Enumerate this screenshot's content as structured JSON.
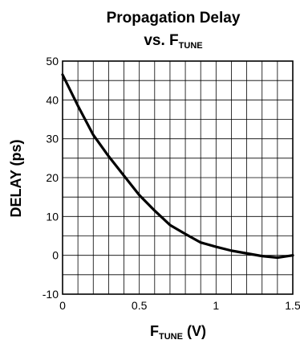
{
  "chart_data": {
    "type": "line",
    "title": {
      "line1": "Propagation Delay",
      "line2_prefix": "vs. F",
      "line2_subscript": "TUNE"
    },
    "xlabel": {
      "prefix": "F",
      "subscript": "TUNE",
      "suffix": " (V)"
    },
    "ylabel": "DELAY (ps)",
    "xlim": [
      0,
      1.5
    ],
    "ylim": [
      -10,
      50
    ],
    "x_ticks": [
      {
        "value": 0,
        "label": "0"
      },
      {
        "value": 0.5,
        "label": "0.5"
      },
      {
        "value": 1,
        "label": "1"
      },
      {
        "value": 1.5,
        "label": "1.5"
      }
    ],
    "y_ticks": [
      {
        "value": -10,
        "label": "-10"
      },
      {
        "value": 0,
        "label": "0"
      },
      {
        "value": 10,
        "label": "10"
      },
      {
        "value": 20,
        "label": "20"
      },
      {
        "value": 30,
        "label": "30"
      },
      {
        "value": 40,
        "label": "40"
      },
      {
        "value": 50,
        "label": "50"
      }
    ],
    "grid": true,
    "x_grid_step": 0.1,
    "y_grid_step": 5,
    "series": [
      {
        "color": "#000000",
        "x": [
          0,
          0.1,
          0.2,
          0.3,
          0.35,
          0.4,
          0.5,
          0.6,
          0.7,
          0.8,
          0.9,
          1.0,
          1.1,
          1.2,
          1.3,
          1.4,
          1.5
        ],
        "y": [
          46.5,
          38.5,
          31.0,
          25.5,
          23.0,
          20.5,
          15.5,
          11.5,
          7.8,
          5.5,
          3.3,
          2.2,
          1.2,
          0.5,
          -0.2,
          -0.6,
          0.0
        ]
      }
    ]
  }
}
